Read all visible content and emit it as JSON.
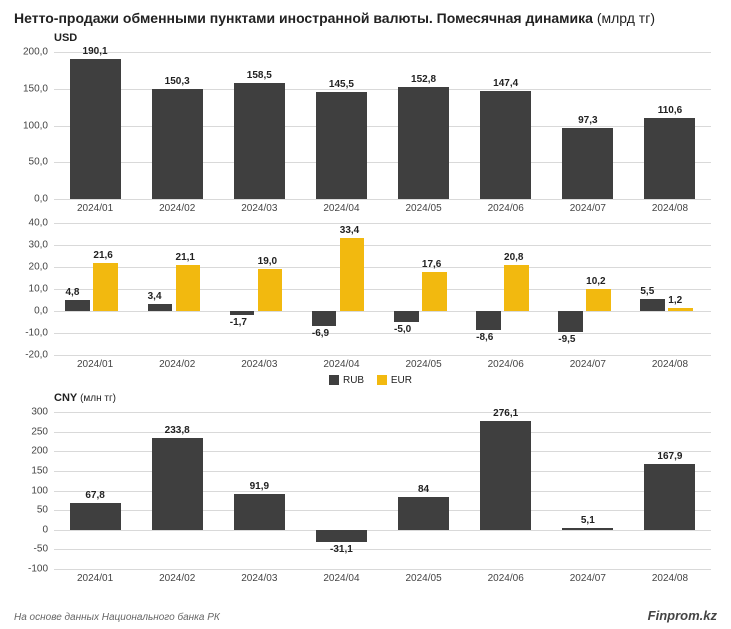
{
  "title_bold": "Нетто-продажи обменными пунктами иностранной валюты. Помесячная динамика",
  "title_rest": " (млрд тг)",
  "categories": [
    "2024/01",
    "2024/02",
    "2024/03",
    "2024/04",
    "2024/05",
    "2024/06",
    "2024/07",
    "2024/08"
  ],
  "colors": {
    "dark": "#3f3f3f",
    "gold": "#f2b90f",
    "grid": "#d9d9d9",
    "bg": "#ffffff"
  },
  "usd": {
    "label": "USD",
    "ymin": 0,
    "ymax": 200,
    "ystep": 50,
    "values": [
      190.1,
      150.3,
      158.5,
      145.5,
      152.8,
      147.4,
      97.3,
      110.6
    ],
    "labels": [
      "190,1",
      "150,3",
      "158,5",
      "145,5",
      "152,8",
      "147,4",
      "97,3",
      "110,6"
    ],
    "color": "#3f3f3f",
    "yticks": [
      "0,0",
      "50,0",
      "100,0",
      "150,0",
      "200,0"
    ]
  },
  "rub_eur": {
    "ymin": -20,
    "ymax": 40,
    "ystep": 10,
    "rub": {
      "name": "RUB",
      "color": "#3f3f3f",
      "values": [
        4.8,
        3.4,
        -1.7,
        -6.9,
        -5.0,
        -8.6,
        -9.5,
        5.5
      ],
      "labels": [
        "4,8",
        "3,4",
        "-1,7",
        "-6,9",
        "-5,0",
        "-8,6",
        "-9,5",
        "5,5"
      ]
    },
    "eur": {
      "name": "EUR",
      "color": "#f2b90f",
      "values": [
        21.6,
        21.1,
        19.0,
        33.4,
        17.6,
        20.8,
        10.2,
        1.2
      ],
      "labels": [
        "21,6",
        "21,1",
        "19,0",
        "33,4",
        "17,6",
        "20,8",
        "10,2",
        "1,2"
      ]
    },
    "yticks": [
      "-20,0",
      "-10,0",
      "0,0",
      "10,0",
      "20,0",
      "30,0",
      "40,0"
    ]
  },
  "cny": {
    "label": "CNY",
    "unit": "(млн тг)",
    "ymin": -100,
    "ymax": 300,
    "ystep": 100,
    "values": [
      67.8,
      233.8,
      91.9,
      -31.1,
      84,
      276.1,
      5.1,
      167.9
    ],
    "labels": [
      "67,8",
      "233,8",
      "91,9",
      "-31,1",
      "84",
      "276,1",
      "5,1",
      "167,9"
    ],
    "color": "#3f3f3f",
    "yticks": [
      "-100",
      "-50",
      "0",
      "50",
      "100",
      "150",
      "200",
      "250",
      "300"
    ]
  },
  "footer": "На основе данных Национального банка РК",
  "brand": "Finprom.kz"
}
